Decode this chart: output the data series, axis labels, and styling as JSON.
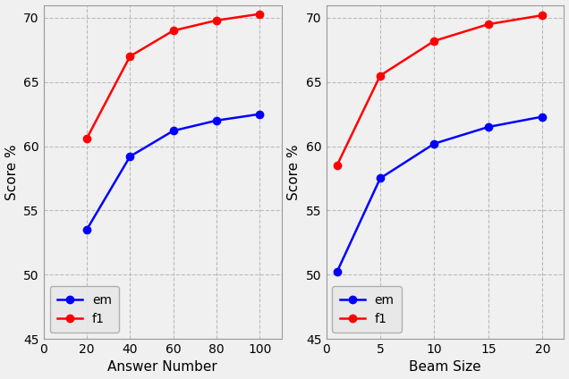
{
  "left": {
    "x": [
      20,
      40,
      60,
      80,
      100
    ],
    "em": [
      53.5,
      59.2,
      61.2,
      62.0,
      62.5
    ],
    "f1": [
      60.6,
      67.0,
      69.0,
      69.8,
      70.3
    ],
    "xlabel": "Answer Number",
    "ylabel": "Score %",
    "ylim": [
      45,
      71
    ],
    "xlim": [
      0,
      110
    ],
    "xticks": [
      0,
      20,
      40,
      60,
      80,
      100
    ],
    "yticks": [
      45,
      50,
      55,
      60,
      65,
      70
    ]
  },
  "right": {
    "x": [
      1,
      5,
      10,
      15,
      20
    ],
    "em": [
      50.2,
      57.5,
      60.2,
      61.5,
      62.3
    ],
    "f1": [
      58.5,
      65.5,
      68.2,
      69.5,
      70.2
    ],
    "xlabel": "Beam Size",
    "ylabel": "Score %",
    "ylim": [
      45,
      71
    ],
    "xlim": [
      0,
      22
    ],
    "xticks": [
      0,
      5,
      10,
      15,
      20
    ],
    "yticks": [
      45,
      50,
      55,
      60,
      65,
      70
    ]
  },
  "em_color": "#0000ff",
  "f1_color": "#ff0000",
  "marker": "o",
  "markersize": 6,
  "linewidth": 1.8,
  "grid_color": "#bbbbbb",
  "grid_style": "--",
  "background_color": "#f0f0f0",
  "tick_fontsize": 10,
  "label_fontsize": 11,
  "legend_fontsize": 10
}
